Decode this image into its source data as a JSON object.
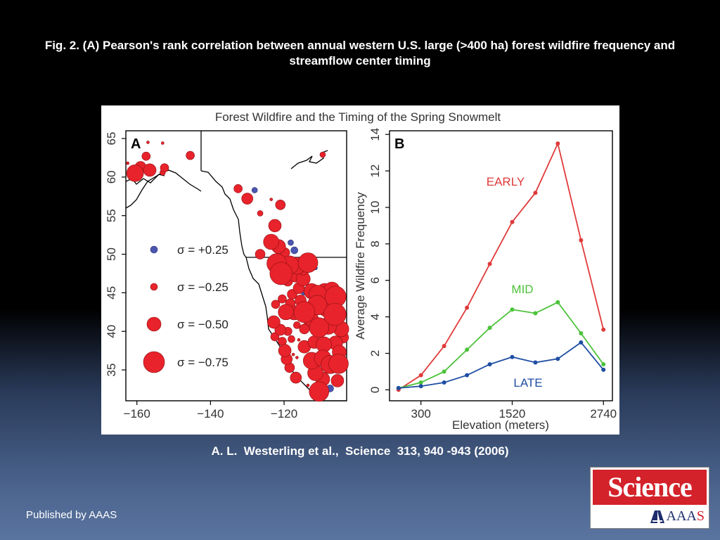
{
  "slide": {
    "title": "Fig. 2. (A) Pearson's rank correlation between annual western U.S. large (>400 ha) forest wildfire frequency and streamflow center timing",
    "citation": "A. L.  Westerling et al.,  Science  313, 940 -943 (2006)",
    "publisher": "Published by AAAS",
    "logo": {
      "top_text": "Science",
      "bottom_prefix": "AAA",
      "bottom_last": "S",
      "mark_icon": "aaas-mark-icon"
    }
  },
  "colors": {
    "background_top": "#000000",
    "background_bottom": "#5a74a0",
    "logo_red": "#d3222a",
    "early": "#e03a3a",
    "mid": "#4cc23a",
    "late": "#1f4ea3",
    "positive_dot": "#4b56b0",
    "negative_dot": "#e8232b"
  },
  "figure": {
    "title": "Forest Wildfire and the Timing of the Spring Snowmelt"
  },
  "chart_data": [
    {
      "type": "scatter",
      "panel_label": "A",
      "xlim": [
        -163,
        -103
      ],
      "ylim": [
        31,
        66
      ],
      "x_ticks": [
        -160,
        -140,
        -120
      ],
      "x_tick_labels": [
        "−160",
        "−140",
        "−120"
      ],
      "y_ticks": [
        35,
        40,
        45,
        50,
        55,
        60,
        65
      ],
      "legend": {
        "placement": "left",
        "entries": [
          {
            "label": "σ = +0.25",
            "value": 0.25
          },
          {
            "label": "σ = −0.25",
            "value": -0.25
          },
          {
            "label": "σ = −0.50",
            "value": -0.5
          },
          {
            "label": "σ = −0.75",
            "value": -0.75
          }
        ]
      },
      "points": [
        {
          "lon": -162.5,
          "lat": 61.8,
          "r": -0.1
        },
        {
          "lon": -160.5,
          "lat": 60.5,
          "r": -0.6
        },
        {
          "lon": -159,
          "lat": 61.3,
          "r": -0.4
        },
        {
          "lon": -157.5,
          "lat": 62.7,
          "r": -0.3
        },
        {
          "lon": -156.5,
          "lat": 60.9,
          "r": -0.45
        },
        {
          "lon": -153,
          "lat": 60.6,
          "r": -0.2
        },
        {
          "lon": -152.5,
          "lat": 61.2,
          "r": -0.3
        },
        {
          "lon": -145.5,
          "lat": 62.8,
          "r": -0.3
        },
        {
          "lon": -153,
          "lat": 64.4,
          "r": -0.08
        },
        {
          "lon": -157,
          "lat": 64.5,
          "r": -0.08
        },
        {
          "lon": -109.5,
          "lat": 62.9,
          "r": -0.2
        },
        {
          "lon": -132.5,
          "lat": 58.5,
          "r": -0.3
        },
        {
          "lon": -130,
          "lat": 57.2,
          "r": -0.4
        },
        {
          "lon": -128,
          "lat": 58.3,
          "r": 0.2
        },
        {
          "lon": -126.5,
          "lat": 55.3,
          "r": -0.2
        },
        {
          "lon": -123.5,
          "lat": 57.1,
          "r": -0.1
        },
        {
          "lon": -121,
          "lat": 56.4,
          "r": -0.35
        },
        {
          "lon": -122.5,
          "lat": 53.7,
          "r": -0.45
        },
        {
          "lon": -123.5,
          "lat": 51.6,
          "r": -0.55
        },
        {
          "lon": -121.5,
          "lat": 51.0,
          "r": -0.5
        },
        {
          "lon": -119.8,
          "lat": 50.2,
          "r": -0.35
        },
        {
          "lon": -118.2,
          "lat": 51.5,
          "r": 0.2
        },
        {
          "lon": -117.2,
          "lat": 50.5,
          "r": 0.25
        },
        {
          "lon": -126.5,
          "lat": 50.0,
          "r": -0.35
        },
        {
          "lon": -122,
          "lat": 48.8,
          "r": -0.7
        },
        {
          "lon": -120.2,
          "lat": 48.2,
          "r": -0.6
        },
        {
          "lon": -118.5,
          "lat": 48.6,
          "r": -0.65
        },
        {
          "lon": -116.5,
          "lat": 48.5,
          "r": -0.6
        },
        {
          "lon": -114.8,
          "lat": 48.3,
          "r": -0.55
        },
        {
          "lon": -113.5,
          "lat": 48.9,
          "r": -0.7
        },
        {
          "lon": -120.8,
          "lat": 47.5,
          "r": -0.8
        },
        {
          "lon": -116.9,
          "lat": 47.2,
          "r": -0.45
        },
        {
          "lon": -114.8,
          "lat": 46.8,
          "r": -0.5
        },
        {
          "lon": -119,
          "lat": 46.5,
          "r": -0.35
        },
        {
          "lon": -111.4,
          "lat": 48.2,
          "r": 0.12
        },
        {
          "lon": -116,
          "lat": 45.6,
          "r": -0.4
        },
        {
          "lon": -114.5,
          "lat": 45.2,
          "r": 0.28
        },
        {
          "lon": -112.5,
          "lat": 45.2,
          "r": -0.55
        },
        {
          "lon": -110.8,
          "lat": 44.8,
          "r": -0.65
        },
        {
          "lon": -109,
          "lat": 45.3,
          "r": -0.5
        },
        {
          "lon": -107,
          "lat": 45.4,
          "r": -0.55
        },
        {
          "lon": -106,
          "lat": 44.5,
          "r": -0.75
        },
        {
          "lon": -117.8,
          "lat": 44.8,
          "r": -0.35
        },
        {
          "lon": -115.5,
          "lat": 44.0,
          "r": -0.4
        },
        {
          "lon": -120.5,
          "lat": 44.2,
          "r": -0.3
        },
        {
          "lon": -122.3,
          "lat": 43.5,
          "r": -0.3
        },
        {
          "lon": -118.3,
          "lat": 43.6,
          "r": -0.35
        },
        {
          "lon": -119.5,
          "lat": 42.5,
          "r": -0.55
        },
        {
          "lon": -117.3,
          "lat": 42.4,
          "r": -0.5
        },
        {
          "lon": -114.5,
          "lat": 42.5,
          "r": -0.75
        },
        {
          "lon": -111,
          "lat": 43.4,
          "r": -0.7
        },
        {
          "lon": -108.5,
          "lat": 43.1,
          "r": -0.65
        },
        {
          "lon": -106.2,
          "lat": 42.2,
          "r": -0.8
        },
        {
          "lon": -112.5,
          "lat": 41.5,
          "r": -0.5
        },
        {
          "lon": -110.5,
          "lat": 40.5,
          "r": -0.7
        },
        {
          "lon": -108,
          "lat": 40.7,
          "r": -0.6
        },
        {
          "lon": -104.5,
          "lat": 40.3,
          "r": -0.55
        },
        {
          "lon": -122.8,
          "lat": 41.2,
          "r": -0.45
        },
        {
          "lon": -121,
          "lat": 40.2,
          "r": -0.4
        },
        {
          "lon": -119,
          "lat": 40.0,
          "r": -0.3
        },
        {
          "lon": -116.5,
          "lat": 40.8,
          "r": -0.25
        },
        {
          "lon": -114.5,
          "lat": 40.3,
          "r": -0.35
        },
        {
          "lon": -122.5,
          "lat": 39.3,
          "r": -0.3
        },
        {
          "lon": -120.5,
          "lat": 38.7,
          "r": -0.3
        },
        {
          "lon": -118,
          "lat": 39.0,
          "r": -0.25
        },
        {
          "lon": -114.5,
          "lat": 38.0,
          "r": -0.45
        },
        {
          "lon": -111.8,
          "lat": 38.6,
          "r": -0.45
        },
        {
          "lon": -109.2,
          "lat": 38.3,
          "r": -0.55
        },
        {
          "lon": -106,
          "lat": 38.5,
          "r": -0.5
        },
        {
          "lon": -104,
          "lat": 39.2,
          "r": -0.4
        },
        {
          "lon": -119.8,
          "lat": 37.5,
          "r": -0.45
        },
        {
          "lon": -119.3,
          "lat": 36.4,
          "r": -0.4
        },
        {
          "lon": -118.5,
          "lat": 35.3,
          "r": -0.35
        },
        {
          "lon": -116.8,
          "lat": 34.0,
          "r": -0.4
        },
        {
          "lon": -116.5,
          "lat": 36.6,
          "r": -0.1
        },
        {
          "lon": -112.5,
          "lat": 36.2,
          "r": -0.6
        },
        {
          "lon": -109.5,
          "lat": 36.5,
          "r": -0.6
        },
        {
          "lon": -107.5,
          "lat": 35.7,
          "r": -0.65
        },
        {
          "lon": -105.2,
          "lat": 35.8,
          "r": -0.7
        },
        {
          "lon": -105,
          "lat": 37.3,
          "r": -0.5
        },
        {
          "lon": -111.5,
          "lat": 34.6,
          "r": -0.55
        },
        {
          "lon": -109.5,
          "lat": 33.8,
          "r": -0.5
        },
        {
          "lon": -105.5,
          "lat": 33.6,
          "r": -0.45
        },
        {
          "lon": -107.5,
          "lat": 32.6,
          "r": 0.25
        },
        {
          "lon": -110.5,
          "lat": 32.2,
          "r": -0.7
        },
        {
          "lon": -114.3,
          "lat": 40.9,
          "r": -0.08
        },
        {
          "lon": -117.5,
          "lat": 37.0,
          "r": -0.08
        },
        {
          "lon": -120.2,
          "lat": 36.3,
          "r": -0.08
        },
        {
          "lon": -116,
          "lat": 38.9,
          "r": -0.08
        },
        {
          "lon": -113.5,
          "lat": 33.0,
          "r": -0.08
        }
      ]
    },
    {
      "type": "line",
      "panel_label": "B",
      "xlabel": "Elevation (meters)",
      "ylabel": "Average Wildfire Frequency",
      "x": [
        0,
        300,
        610,
        915,
        1220,
        1520,
        1830,
        2130,
        2440,
        2740
      ],
      "x_ticks": [
        300,
        1520,
        2740
      ],
      "y_ticks": [
        0,
        2,
        4,
        6,
        8,
        10,
        12,
        14
      ],
      "xlim": [
        -120,
        2860
      ],
      "ylim": [
        -0.6,
        14.2
      ],
      "series": [
        {
          "name": "EARLY",
          "color": "#e03a3a",
          "values": [
            0.0,
            0.8,
            2.4,
            4.5,
            6.9,
            9.2,
            10.8,
            13.5,
            8.2,
            3.3
          ]
        },
        {
          "name": "MID",
          "color": "#4cc23a",
          "values": [
            0.1,
            0.4,
            1.0,
            2.2,
            3.4,
            4.4,
            4.2,
            4.8,
            3.1,
            1.4
          ]
        },
        {
          "name": "LATE",
          "color": "#1f4ea3",
          "values": [
            0.1,
            0.2,
            0.4,
            0.8,
            1.4,
            1.8,
            1.5,
            1.7,
            2.6,
            1.1
          ]
        }
      ]
    }
  ]
}
